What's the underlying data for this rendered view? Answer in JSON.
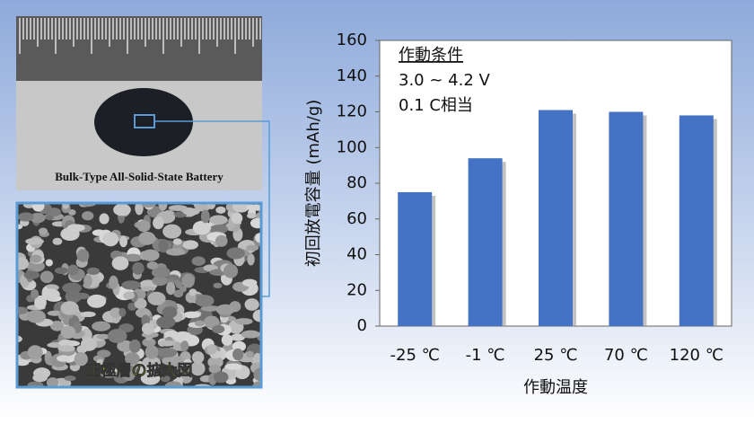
{
  "chart_data": {
    "type": "bar",
    "annotation_title": "作動条件",
    "annotation_lines": [
      "3.0 ~ 4.2 V",
      "0.1 C相当"
    ],
    "categories": [
      "-25 ℃",
      "-1 ℃",
      "25 ℃",
      "70 ℃",
      "120 ℃"
    ],
    "values": [
      75,
      94,
      121,
      120,
      118
    ],
    "color": "#4472c4",
    "ylim": [
      0,
      160
    ],
    "yticks": [
      0,
      20,
      40,
      60,
      80,
      100,
      120,
      140,
      160
    ],
    "y_label": "初回放電容量 (mAh/g)",
    "x_label": "作動温度",
    "grid": false
  },
  "photo_caption": "Bulk-Type All-Solid-State Battery",
  "micrograph_caption": "正極層の拡大図"
}
